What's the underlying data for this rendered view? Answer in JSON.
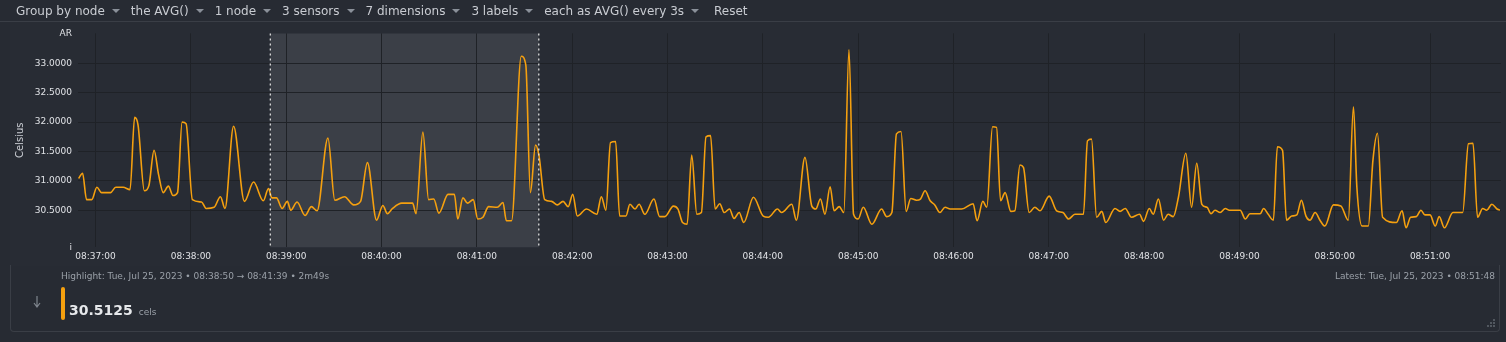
{
  "chart_data": {
    "type": "line",
    "ylabel": "Celsius",
    "xlim": [
      8.6136,
      8.8624
    ],
    "ylim": [
      29.87,
      33.51
    ],
    "xticks": [
      {
        "value": 8.616667,
        "label": "08:37:00"
      },
      {
        "value": 8.633333,
        "label": "08:38:00"
      },
      {
        "value": 8.65,
        "label": "08:39:00"
      },
      {
        "value": 8.666667,
        "label": "08:40:00"
      },
      {
        "value": 8.683333,
        "label": "08:41:00"
      },
      {
        "value": 8.7,
        "label": "08:42:00"
      },
      {
        "value": 8.716667,
        "label": "08:43:00"
      },
      {
        "value": 8.733333,
        "label": "08:44:00"
      },
      {
        "value": 8.75,
        "label": "08:45:00"
      },
      {
        "value": 8.766667,
        "label": "08:46:00"
      },
      {
        "value": 8.783333,
        "label": "08:47:00"
      },
      {
        "value": 8.8,
        "label": "08:48:00"
      },
      {
        "value": 8.816667,
        "label": "08:49:00"
      },
      {
        "value": 8.833333,
        "label": "08:50:00"
      },
      {
        "value": 8.85,
        "label": "08:51:00"
      }
    ],
    "yticks": [
      {
        "value": 29.87,
        "label": "i"
      },
      {
        "value": 30.5,
        "label": "30.5000"
      },
      {
        "value": 31,
        "label": "31.0000"
      },
      {
        "value": 31.5,
        "label": "31.5000"
      },
      {
        "value": 32,
        "label": "32.0000"
      },
      {
        "value": 32.5,
        "label": "32.5000"
      },
      {
        "value": 33,
        "label": "33.0000"
      },
      {
        "value": 33.51,
        "label": "AR"
      }
    ],
    "grid": true,
    "bands": [
      {
        "axis": "x",
        "from": 8.647222,
        "to": 8.694167,
        "color": "#3b3f47"
      }
    ],
    "ref_lines": [
      {
        "axis": "x",
        "value": 8.647222,
        "color": "#e8e8e8",
        "line_style": "dotted"
      },
      {
        "axis": "x",
        "value": 8.694167,
        "color": "#e8e8e8",
        "line_style": "dotted"
      }
    ],
    "annotations": [
      "Group by node",
      "the AVG()",
      "1 node",
      "3 sensors",
      "7 dimensions",
      "3 labels",
      "each as AVG() every 3s",
      "Reset",
      "Highlight: Tue, Jul 25, 2023 • 08:38:50 → 08:41:39 • 2m49s",
      "Latest: Tue, Jul 25, 2023 • 08:51:48",
      "30.5125",
      "cels"
    ],
    "series": [
      {
        "color": "#f5a00f",
        "x": [
          8.6137,
          8.6144,
          8.6151,
          8.616,
          8.6169,
          8.6177,
          8.6193,
          8.6202,
          8.6215,
          8.6227,
          8.6235,
          8.6241,
          8.6252,
          8.626,
          8.6269,
          8.6277,
          8.6285,
          8.6294,
          8.6302,
          8.631,
          8.6318,
          8.6325,
          8.6336,
          8.6352,
          8.636,
          8.6374,
          8.6385,
          8.6393,
          8.6408,
          8.6427,
          8.6443,
          8.646,
          8.6469,
          8.6475,
          8.6483,
          8.6493,
          8.6502,
          8.6508,
          8.6519,
          8.6533,
          8.6544,
          8.6554,
          8.6573,
          8.6585,
          8.6602,
          8.6618,
          8.663,
          8.6642,
          8.6658,
          8.6669,
          8.6677,
          8.6686,
          8.6702,
          8.6721,
          8.6727,
          8.6739,
          8.6749,
          8.6758,
          8.6767,
          8.6783,
          8.6794,
          8.68,
          8.6809,
          8.6817,
          8.6827,
          8.6835,
          8.6844,
          8.6854,
          8.6869,
          8.6879,
          8.6885,
          8.6894,
          8.6911,
          8.6919,
          8.6927,
          8.6936,
          8.6942,
          8.6952,
          8.6964,
          8.6974,
          8.6984,
          8.6993,
          8.7001,
          8.7009,
          8.7025,
          8.7043,
          8.7051,
          8.7059,
          8.7067,
          8.7076,
          8.7083,
          8.7094,
          8.7101,
          8.711,
          8.7117,
          8.7127,
          8.7143,
          8.7153,
          8.7162,
          8.7177,
          8.7185,
          8.7193,
          8.7201,
          8.7209,
          8.7218,
          8.7226,
          8.7234,
          8.7242,
          8.725,
          8.7258,
          8.7266,
          8.7275,
          8.7283,
          8.7292,
          8.73,
          8.7317,
          8.7334,
          8.7343,
          8.7359,
          8.7366,
          8.7384,
          8.7392,
          8.7407,
          8.7419,
          8.7426,
          8.7434,
          8.7442,
          8.7451,
          8.7458,
          8.7467,
          8.7475,
          8.7484,
          8.7492,
          8.75,
          8.7509,
          8.7524,
          8.7541,
          8.755,
          8.7559,
          8.7567,
          8.7575,
          8.7584,
          8.7592,
          8.7602,
          8.7609,
          8.7617,
          8.7626,
          8.7634,
          8.7643,
          8.7652,
          8.7661,
          8.7681,
          8.7701,
          8.7708,
          8.7718,
          8.7725,
          8.7735,
          8.7742,
          8.7749,
          8.7757,
          8.7767,
          8.7774,
          8.7783,
          8.7789,
          8.7799,
          8.7809,
          8.7818,
          8.7834,
          8.7847,
          8.7858,
          8.7868,
          8.7879,
          8.7894,
          8.7901,
          8.7908,
          8.7917,
          8.7926,
          8.7933,
          8.7949,
          8.7958,
          8.7967,
          8.7978,
          8.7992,
          8.7999,
          8.8009,
          8.8016,
          8.8025,
          8.8034,
          8.8042,
          8.8051,
          8.806,
          8.8073,
          8.8083,
          8.8092,
          8.8101,
          8.811,
          8.8117,
          8.8124,
          8.8133,
          8.8142,
          8.8149,
          8.8168,
          8.8177,
          8.8185,
          8.8203,
          8.8209,
          8.8217,
          8.8226,
          8.8233,
          8.8242,
          8.8249,
          8.8258,
          8.8267,
          8.8275,
          8.8283,
          8.829,
          8.8299,
          8.8308,
          8.8316,
          8.8331,
          8.8344,
          8.8357,
          8.8366,
          8.8372,
          8.8381,
          8.8392,
          8.84,
          8.8408,
          8.8417,
          8.8441,
          8.8451,
          8.8458,
          8.8466,
          8.8476,
          8.8484,
          8.8491,
          8.85,
          8.8509,
          8.8516,
          8.8525,
          8.854,
          8.8557,
          8.8567,
          8.8575,
          8.8583,
          8.8592,
          8.8599,
          8.8608,
          8.8617,
          8.8622
        ],
        "values": [
          31.04,
          31.13,
          30.68,
          30.68,
          30.89,
          30.8,
          30.8,
          30.89,
          30.89,
          30.85,
          32.08,
          31.95,
          30.83,
          30.92,
          31.52,
          31.1,
          30.8,
          30.91,
          30.75,
          30.8,
          32.0,
          31.97,
          30.68,
          30.64,
          30.53,
          30.55,
          30.73,
          30.53,
          31.93,
          30.65,
          30.98,
          30.66,
          30.87,
          30.71,
          30.71,
          30.53,
          30.65,
          30.5,
          30.64,
          30.41,
          30.56,
          30.49,
          31.73,
          30.67,
          30.73,
          30.59,
          30.65,
          31.31,
          30.33,
          30.58,
          30.44,
          30.53,
          30.62,
          30.62,
          30.44,
          31.83,
          30.68,
          30.69,
          30.45,
          30.77,
          30.77,
          30.35,
          30.71,
          30.62,
          30.68,
          30.35,
          30.38,
          30.56,
          30.55,
          30.63,
          30.32,
          30.32,
          33.12,
          32.97,
          30.8,
          31.61,
          31.43,
          30.68,
          30.65,
          30.59,
          30.65,
          30.56,
          30.77,
          30.4,
          30.52,
          30.43,
          30.73,
          30.5,
          31.65,
          31.67,
          30.4,
          30.4,
          30.6,
          30.52,
          30.6,
          30.43,
          30.69,
          30.39,
          30.39,
          30.57,
          30.52,
          30.29,
          30.26,
          31.44,
          30.43,
          30.46,
          31.75,
          31.77,
          30.52,
          30.61,
          30.46,
          30.52,
          30.36,
          30.46,
          30.29,
          30.72,
          30.4,
          30.38,
          30.52,
          30.46,
          30.6,
          30.33,
          31.4,
          30.57,
          30.52,
          30.69,
          30.43,
          30.9,
          30.49,
          30.56,
          30.46,
          33.23,
          30.43,
          30.35,
          30.55,
          30.26,
          30.52,
          30.39,
          30.46,
          31.8,
          31.84,
          30.48,
          30.7,
          30.67,
          30.69,
          30.83,
          30.66,
          30.59,
          30.46,
          30.55,
          30.52,
          30.52,
          30.61,
          30.32,
          30.65,
          30.55,
          31.92,
          31.91,
          30.66,
          30.8,
          30.48,
          30.49,
          31.27,
          31.23,
          30.46,
          30.55,
          30.49,
          30.74,
          30.49,
          30.46,
          30.35,
          30.43,
          30.43,
          31.68,
          31.71,
          30.38,
          30.48,
          30.29,
          30.53,
          30.48,
          30.53,
          30.38,
          30.43,
          30.31,
          30.53,
          30.43,
          30.69,
          30.33,
          30.43,
          30.39,
          30.72,
          31.47,
          30.55,
          31.3,
          30.6,
          30.55,
          30.44,
          30.5,
          30.46,
          30.53,
          30.5,
          30.5,
          30.35,
          30.44,
          30.44,
          30.53,
          30.43,
          30.33,
          31.58,
          31.52,
          30.33,
          30.4,
          30.42,
          30.67,
          30.4,
          30.33,
          30.46,
          30.32,
          30.23,
          30.59,
          30.57,
          30.33,
          32.26,
          30.89,
          30.23,
          30.23,
          31.34,
          31.81,
          30.38,
          30.29,
          30.49,
          30.2,
          30.38,
          30.39,
          30.5,
          30.42,
          30.42,
          30.23,
          30.39,
          30.2,
          30.46,
          30.46,
          31.63,
          31.64,
          30.38,
          30.53,
          30.5,
          30.6,
          30.52,
          30.5
        ]
      }
    ]
  }
}
